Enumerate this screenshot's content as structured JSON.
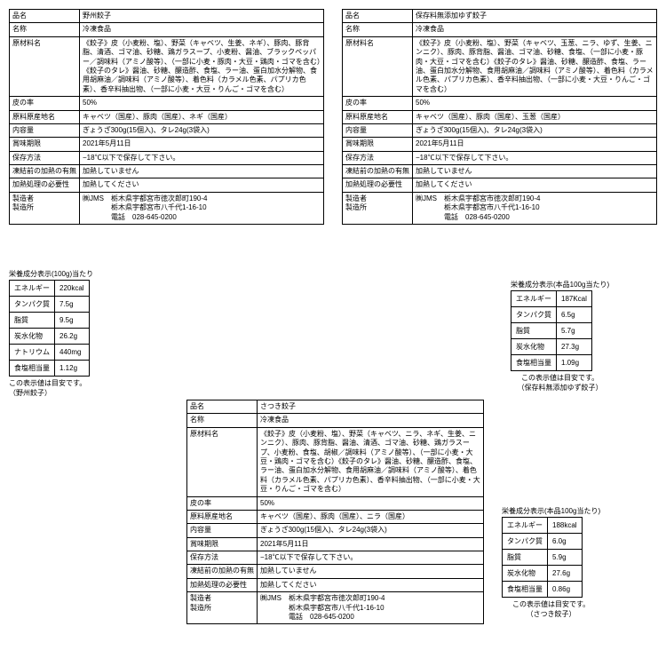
{
  "products": [
    {
      "rows": [
        [
          "品名",
          "野州餃子"
        ],
        [
          "名称",
          "冷凍食品"
        ],
        [
          "原材料名",
          "《餃子》皮（小麦粉、塩）、野菜（キャベツ、生姜、ネギ）、豚肉、豚背脂、清酒、ゴマ油、砂糖、鶏ガラスープ、小麦粉、醤油、ブラックペッパー／調味料（アミノ酸等）、（一部に小麦・豚肉・大豆・鶏肉・ゴマを含む）《餃子のタレ》醤油、砂糖、醸造酢、食塩、ラー油、蛋白加水分解物、食用胡麻油／調味料（アミノ酸等）、着色料（カラメル色素、パプリカ色素）、香辛料抽出物、（一部に小麦・大豆・りんご・ゴマを含む）"
        ],
        [
          "皮の率",
          "50%"
        ],
        [
          "原料原産地名",
          "キャベツ（国産）、豚肉（国産）、ネギ（国産）"
        ],
        [
          "内容量",
          "ぎょうざ300g(15個入)、タレ24g(3袋入)"
        ],
        [
          "賞味期限",
          "2021年5月11日"
        ],
        [
          "保存方法",
          "−18℃以下で保存して下さい。"
        ],
        [
          "凍結前の加熱の有無",
          "加熱していません"
        ],
        [
          "加熱処理の必要性",
          "加熱してください"
        ],
        [
          "製造者\n製造所",
          "㈱JMS　栃木県宇都宮市徳次郎町190-4\n　　　　栃木県宇都宮市八千代1-16-10\n　　　　電話　028-645-0200"
        ]
      ]
    },
    {
      "rows": [
        [
          "品名",
          "保存料無添加ゆず餃子"
        ],
        [
          "名称",
          "冷凍食品"
        ],
        [
          "原材料名",
          "《餃子》皮（小麦粉、塩）、野菜（キャベツ、玉葱、ニラ、ゆず、生姜、ニンニク）、豚肉、豚背脂、醤油、ゴマ油、砂糖、食塩、（一部に小麦・豚肉・大豆・ゴマを含む）《餃子のタレ》醤油、砂糖、醸造酢、食塩、ラー油、蛋白加水分解物、食用胡麻油／調味料（アミノ酸等）、着色料（カラメル色素、パプリカ色素）、香辛料抽出物、（一部に小麦・大豆・りんご・ゴマを含む）"
        ],
        [
          "皮の率",
          "50%"
        ],
        [
          "原料原産地名",
          "キャベツ（国産）、豚肉（国産）、玉葱（国産）"
        ],
        [
          "内容量",
          "ぎょうざ300g(15個入)、タレ24g(3袋入)"
        ],
        [
          "賞味期限",
          "2021年5月11日"
        ],
        [
          "保存方法",
          "−18℃以下で保存して下さい。"
        ],
        [
          "凍結前の加熱の有無",
          "加熱していません"
        ],
        [
          "加熱処理の必要性",
          "加熱してください"
        ],
        [
          "製造者\n製造所",
          "㈱JMS　栃木県宇都宮市徳次郎町190-4\n　　　　栃木県宇都宮市八千代1-16-10\n　　　　電話　028-645-0200"
        ]
      ]
    },
    {
      "rows": [
        [
          "品名",
          "さつき餃子"
        ],
        [
          "名称",
          "冷凍食品"
        ],
        [
          "原材料名",
          "《餃子》皮（小麦粉、塩）、野菜（キャベツ、ニラ、ネギ、生姜、ニンニク）、豚肉、豚背脂、醤油、清酒、ゴマ油、砂糖、鶏ガラスープ、小麦粉、食塩、胡椒／調味料（アミノ酸等）、（一部に小麦・大豆・鶏肉・ゴマを含む）《餃子のタレ》醤油、砂糖、醸造酢、食塩、ラー油、蛋白加水分解物、食用胡麻油／調味料（アミノ酸等）、着色料（カラメル色素、パプリカ色素）、香辛料抽出物、（一部に小麦・大豆・りんご・ゴマを含む）"
        ],
        [
          "皮の率",
          "50%"
        ],
        [
          "原料原産地名",
          "キャベツ（国産）、豚肉（国産）、ニラ（国産）"
        ],
        [
          "内容量",
          "ぎょうざ300g(15個入)、タレ24g(3袋入)"
        ],
        [
          "賞味期限",
          "2021年5月11日"
        ],
        [
          "保存方法",
          "−18℃以下で保存して下さい。"
        ],
        [
          "凍結前の加熱の有無",
          "加熱していません"
        ],
        [
          "加熱処理の必要性",
          "加熱してください"
        ],
        [
          "製造者\n製造所",
          "㈱JMS　栃木県宇都宮市徳次郎町190-4\n　　　　栃木県宇都宮市八千代1-16-10\n　　　　電話　028-645-0200"
        ]
      ]
    }
  ],
  "nutrition": [
    {
      "title": "栄養成分表示(100g)当たり",
      "rows": [
        [
          "エネルギー",
          "220kcal"
        ],
        [
          "タンパク質",
          "7.5g"
        ],
        [
          "脂質",
          "9.5g"
        ],
        [
          "炭水化物",
          "26.2g"
        ],
        [
          "ナトリウム",
          "440mg"
        ],
        [
          "食塩相当量",
          "1.12g"
        ]
      ],
      "note": "この表示値は目安です。\n（野州餃子）"
    },
    {
      "title": "栄養成分表示(本品100g当たり)",
      "rows": [
        [
          "エネルギー",
          "187Kcal"
        ],
        [
          "タンパク質",
          "6.5g"
        ],
        [
          "脂質",
          "5.7g"
        ],
        [
          "炭水化物",
          "27.3g"
        ],
        [
          "食塩相当量",
          "1.09g"
        ]
      ],
      "note": "この表示値は目安です。\n（保存料無添加ゆず餃子）"
    },
    {
      "title": "栄養成分表示(本品100g当たり)",
      "rows": [
        [
          "エネルギー",
          "188kcal"
        ],
        [
          "タンパク質",
          "6.0g"
        ],
        [
          "脂質",
          "5.9g"
        ],
        [
          "炭水化物",
          "27.6g"
        ],
        [
          "食塩相当量",
          "0.86g"
        ]
      ],
      "note": "この表示値は目安です。\n（さつき餃子）"
    }
  ]
}
